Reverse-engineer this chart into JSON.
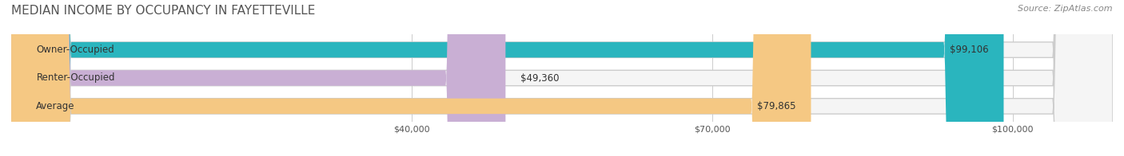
{
  "title": "MEDIAN INCOME BY OCCUPANCY IN FAYETTEVILLE",
  "source": "Source: ZipAtlas.com",
  "categories": [
    "Owner-Occupied",
    "Renter-Occupied",
    "Average"
  ],
  "values": [
    99106,
    49360,
    79865
  ],
  "labels": [
    "$99,106",
    "$49,360",
    "$79,865"
  ],
  "bar_colors": [
    "#2ab5be",
    "#c9afd4",
    "#f5c883"
  ],
  "bar_edge_colors": [
    "#2ab5be",
    "#c9afd4",
    "#f5c883"
  ],
  "bg_bar_color": "#f0f0f0",
  "xmin": 0,
  "xmax": 110000,
  "xticks": [
    40000,
    70000,
    100000
  ],
  "xticklabels": [
    "$40,000",
    "$70,000",
    "$100,000"
  ],
  "title_fontsize": 11,
  "source_fontsize": 8,
  "label_fontsize": 8.5,
  "cat_fontsize": 8.5
}
